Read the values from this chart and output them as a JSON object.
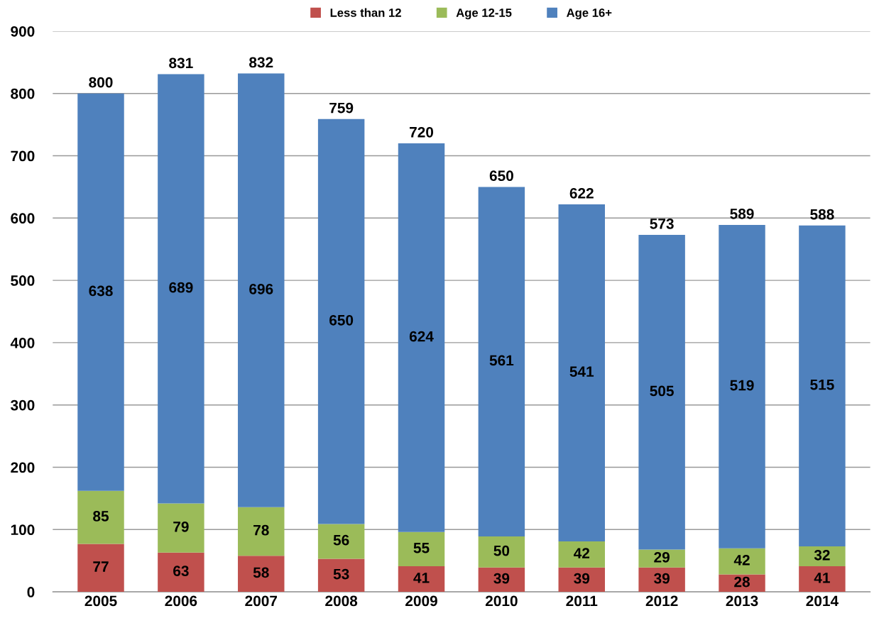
{
  "chart_data": {
    "type": "bar",
    "stacked": true,
    "categories": [
      "2005",
      "2006",
      "2007",
      "2008",
      "2009",
      "2010",
      "2011",
      "2012",
      "2013",
      "2014"
    ],
    "series": [
      {
        "name": "Less than 12",
        "color": "#c0504d",
        "values": [
          77,
          63,
          58,
          53,
          41,
          39,
          39,
          39,
          28,
          41
        ]
      },
      {
        "name": "Age 12-15",
        "color": "#9bbb59",
        "values": [
          85,
          79,
          78,
          56,
          55,
          50,
          42,
          29,
          42,
          32
        ]
      },
      {
        "name": "Age 16+",
        "color": "#4f81bd",
        "values": [
          638,
          689,
          696,
          650,
          624,
          561,
          541,
          505,
          519,
          515
        ]
      }
    ],
    "totals": [
      "800",
      "831",
      "832",
      "759",
      "720",
      "650",
      "622",
      "573",
      "589",
      "588"
    ],
    "data_labels": true,
    "ylim": [
      0,
      900
    ],
    "yticks": [
      0,
      100,
      200,
      300,
      400,
      500,
      600,
      700,
      800,
      900
    ],
    "grid": "y",
    "legend": "top"
  }
}
